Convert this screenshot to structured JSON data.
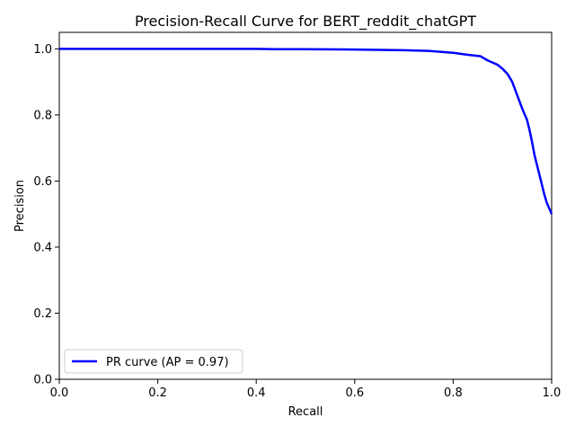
{
  "chart_data": {
    "type": "line",
    "title": "Precision-Recall Curve for BERT_reddit_chatGPT",
    "xlabel": "Recall",
    "ylabel": "Precision",
    "xlim": [
      0,
      1
    ],
    "ylim": [
      0,
      1.05
    ],
    "xticks": [
      0.0,
      0.2,
      0.4,
      0.6,
      0.8,
      1.0
    ],
    "yticks": [
      0.0,
      0.2,
      0.4,
      0.6,
      0.8,
      1.0
    ],
    "xtick_labels": [
      "0.0",
      "0.2",
      "0.4",
      "0.6",
      "0.8",
      "1.0"
    ],
    "ytick_labels": [
      "0.0",
      "0.2",
      "0.4",
      "0.6",
      "0.8",
      "1.0"
    ],
    "grid": false,
    "legend_position": "lower-left",
    "series": [
      {
        "name": "PR curve (AP = 0.97)",
        "color": "#0000ff",
        "x": [
          0.0,
          0.1,
          0.2,
          0.3,
          0.4,
          0.44,
          0.5,
          0.6,
          0.65,
          0.7,
          0.75,
          0.8,
          0.83,
          0.855,
          0.87,
          0.89,
          0.9,
          0.91,
          0.92,
          0.93,
          0.94,
          0.95,
          0.955,
          0.96,
          0.965,
          0.97,
          0.975,
          0.98,
          0.985,
          0.99,
          1.0
        ],
        "y": [
          1.0,
          1.0,
          1.0,
          1.0,
          1.0,
          0.999,
          0.999,
          0.998,
          0.997,
          0.996,
          0.994,
          0.988,
          0.982,
          0.978,
          0.965,
          0.952,
          0.94,
          0.925,
          0.9,
          0.86,
          0.82,
          0.785,
          0.755,
          0.72,
          0.68,
          0.65,
          0.62,
          0.59,
          0.56,
          0.535,
          0.5
        ]
      }
    ]
  }
}
